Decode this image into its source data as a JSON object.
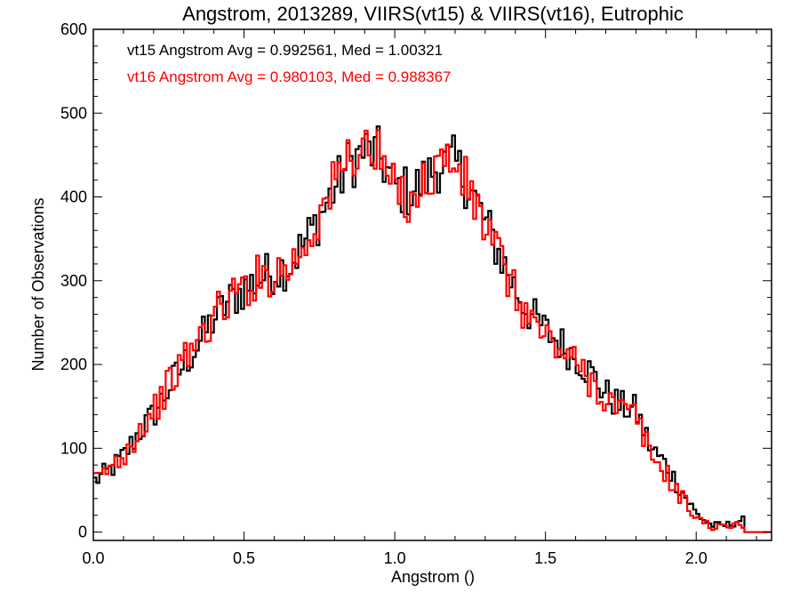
{
  "chart_data": {
    "type": "line",
    "step": true,
    "title": "Angstrom, 2013289, VIIRS(vt15) & VIIRS(vt16), Eutrophic",
    "xlabel": "Angstrom ()",
    "ylabel": "Number of Observations",
    "xlim": [
      0.0,
      2.25
    ],
    "ylim": [
      -10,
      600
    ],
    "xticks": [
      0.0,
      0.5,
      1.0,
      1.5,
      2.0
    ],
    "xtick_labels": [
      "0.0",
      "0.5",
      "1.0",
      "1.5",
      "2.0"
    ],
    "yticks": [
      0,
      100,
      200,
      300,
      400,
      500,
      600
    ],
    "ytick_labels": [
      "0",
      "100",
      "200",
      "300",
      "400",
      "500",
      "600"
    ],
    "bin_width": 0.01,
    "annotations": [
      {
        "text": "vt15 Angstrom Avg = 0.992561, Med = 1.00321",
        "color": "#000000"
      },
      {
        "text": "vt16 Angstrom Avg = 0.980103, Med = 0.988367",
        "color": "#ff0000"
      }
    ],
    "series": [
      {
        "name": "vt15",
        "color": "#000000",
        "x": [
          0.0,
          0.05,
          0.1,
          0.15,
          0.2,
          0.25,
          0.3,
          0.35,
          0.4,
          0.45,
          0.5,
          0.55,
          0.6,
          0.65,
          0.7,
          0.75,
          0.8,
          0.85,
          0.9,
          0.95,
          1.0,
          1.05,
          1.1,
          1.15,
          1.2,
          1.25,
          1.3,
          1.35,
          1.4,
          1.45,
          1.5,
          1.55,
          1.6,
          1.65,
          1.7,
          1.75,
          1.8,
          1.85,
          1.9,
          1.95,
          2.0,
          2.05,
          2.1,
          2.15,
          2.2,
          2.25
        ],
        "y": [
          60,
          72,
          90,
          118,
          140,
          172,
          200,
          225,
          255,
          275,
          290,
          302,
          312,
          318,
          345,
          375,
          410,
          440,
          455,
          450,
          412,
          405,
          420,
          440,
          440,
          410,
          370,
          330,
          290,
          260,
          240,
          225,
          210,
          190,
          165,
          150,
          145,
          100,
          80,
          50,
          22,
          8,
          8,
          15,
          0,
          0
        ]
      },
      {
        "name": "vt16",
        "color": "#ff0000",
        "x": [
          0.0,
          0.05,
          0.1,
          0.15,
          0.2,
          0.25,
          0.3,
          0.35,
          0.4,
          0.45,
          0.5,
          0.55,
          0.6,
          0.65,
          0.7,
          0.75,
          0.8,
          0.85,
          0.9,
          0.95,
          1.0,
          1.05,
          1.1,
          1.15,
          1.2,
          1.25,
          1.3,
          1.35,
          1.4,
          1.45,
          1.5,
          1.55,
          1.6,
          1.65,
          1.7,
          1.75,
          1.8,
          1.85,
          1.9,
          1.95,
          2.0,
          2.05,
          2.1,
          2.15,
          2.2,
          2.25
        ],
        "y": [
          58,
          75,
          92,
          120,
          145,
          175,
          205,
          230,
          258,
          278,
          292,
          305,
          310,
          316,
          342,
          378,
          415,
          450,
          460,
          445,
          405,
          400,
          415,
          445,
          440,
          405,
          365,
          325,
          282,
          255,
          232,
          218,
          200,
          182,
          160,
          145,
          138,
          92,
          70,
          42,
          18,
          6,
          6,
          10,
          0,
          0
        ]
      }
    ]
  }
}
